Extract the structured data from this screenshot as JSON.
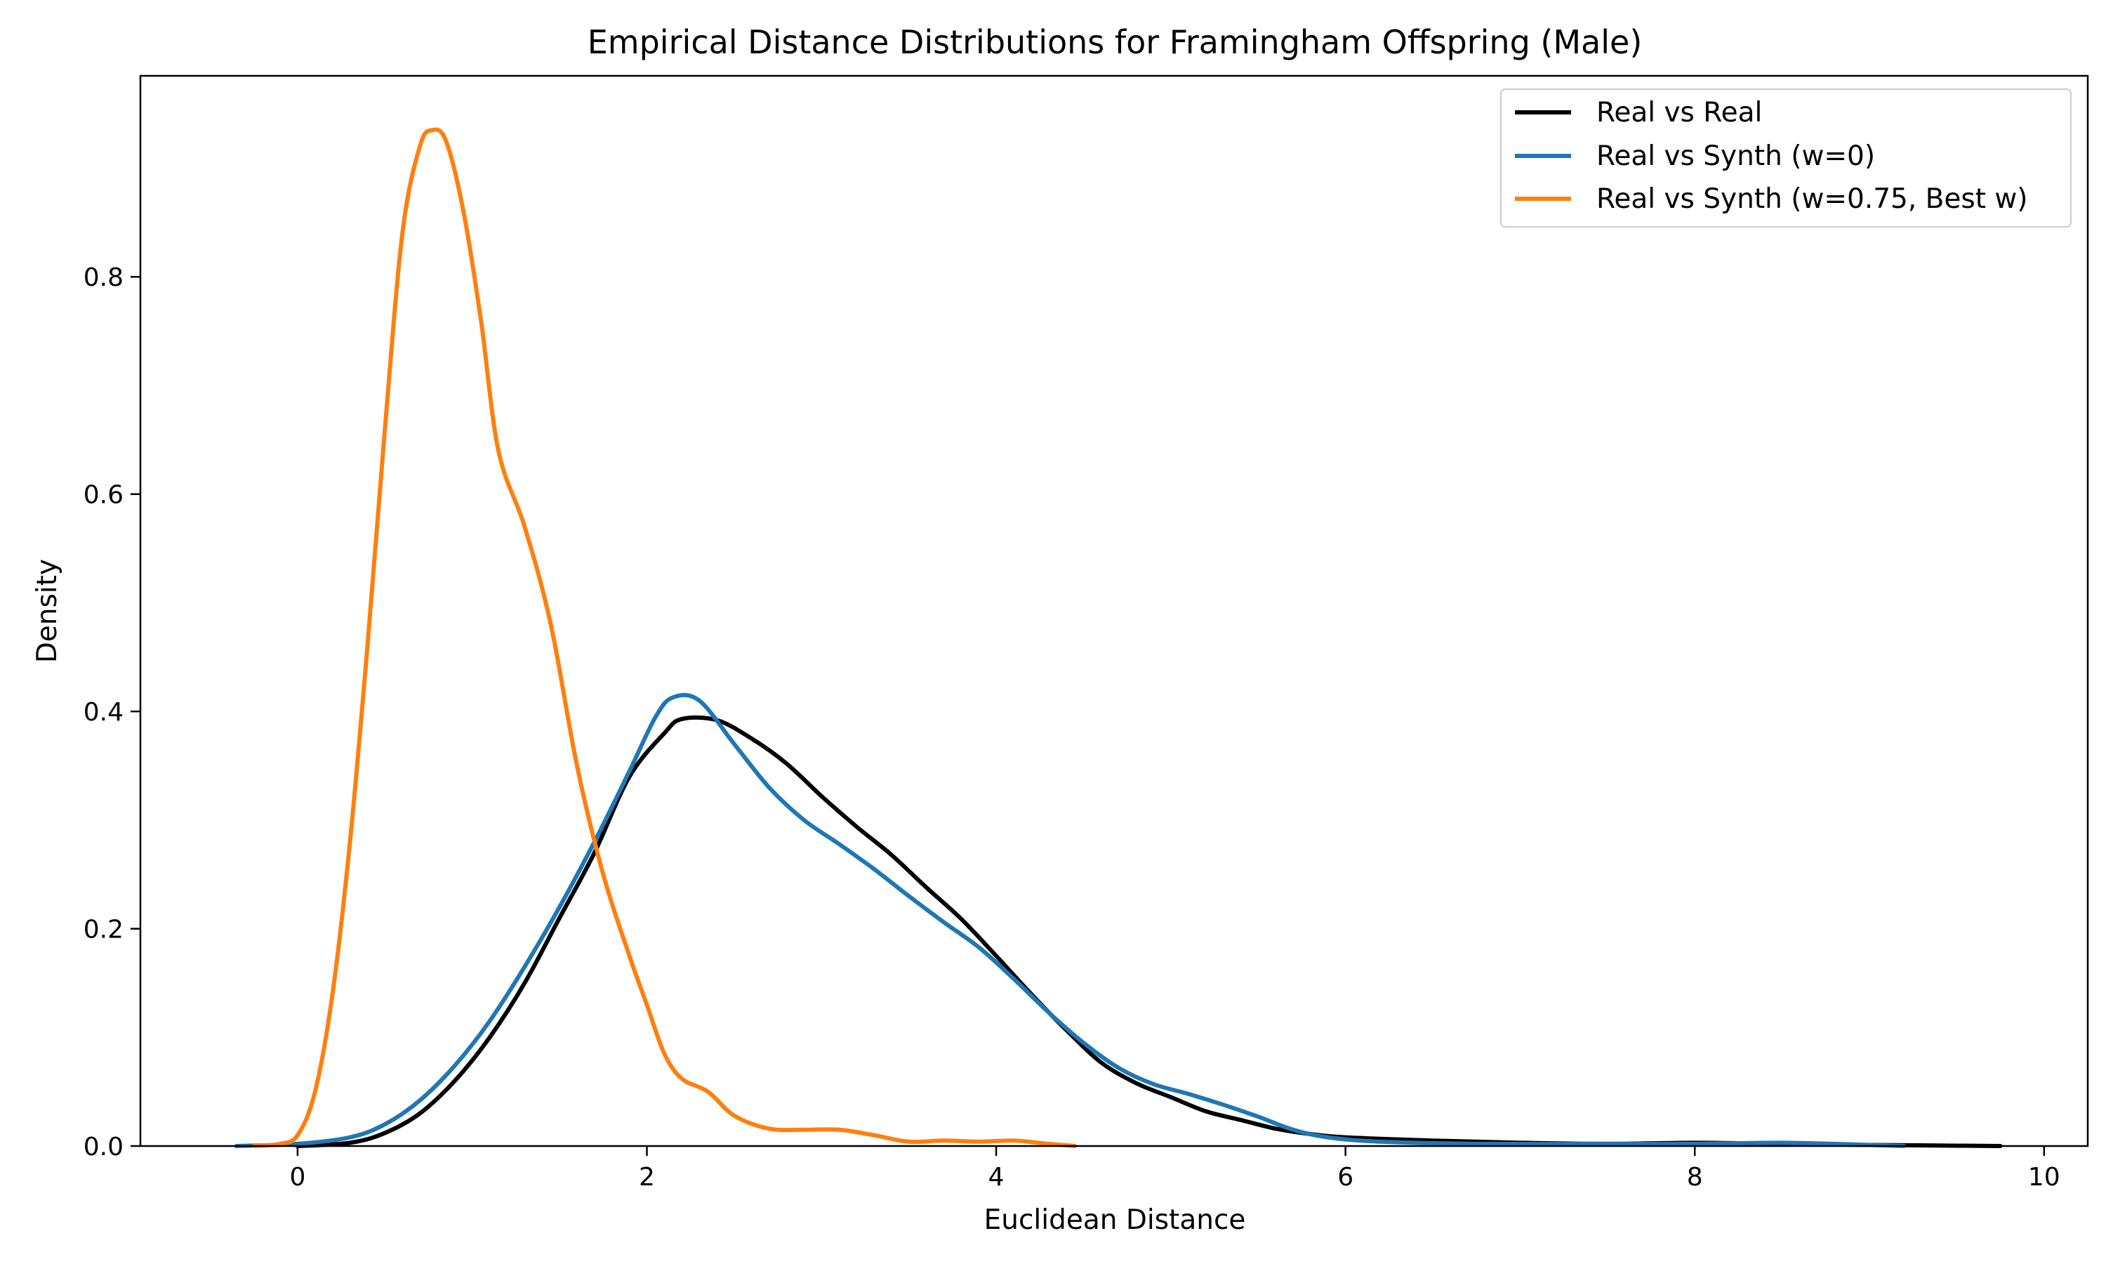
{
  "chart_data": {
    "type": "line",
    "title": "Empirical Distance Distributions for Framingham Offspring (Male)",
    "xlabel": "Euclidean Distance",
    "ylabel": "Density",
    "xlim": [
      -0.9,
      10.25
    ],
    "ylim": [
      0,
      0.985
    ],
    "xticks": [
      0,
      2,
      4,
      6,
      8,
      10
    ],
    "xtick_labels": [
      "0",
      "2",
      "4",
      "6",
      "8",
      "10"
    ],
    "yticks": [
      0,
      0.2,
      0.4,
      0.6,
      0.8
    ],
    "ytick_labels": [
      "0.0",
      "0.2",
      "0.4",
      "0.6",
      "0.8"
    ],
    "legend_position": "upper right",
    "series": [
      {
        "name": "Real vs Real",
        "legend_label": "Real vs Real",
        "color": "#000000",
        "points": [
          [
            0.0,
            0.0
          ],
          [
            0.3,
            0.003
          ],
          [
            0.5,
            0.012
          ],
          [
            0.7,
            0.03
          ],
          [
            0.9,
            0.06
          ],
          [
            1.1,
            0.1
          ],
          [
            1.3,
            0.15
          ],
          [
            1.5,
            0.21
          ],
          [
            1.7,
            0.27
          ],
          [
            1.9,
            0.34
          ],
          [
            2.1,
            0.38
          ],
          [
            2.2,
            0.393
          ],
          [
            2.4,
            0.392
          ],
          [
            2.6,
            0.375
          ],
          [
            2.8,
            0.352
          ],
          [
            3.0,
            0.322
          ],
          [
            3.2,
            0.294
          ],
          [
            3.4,
            0.268
          ],
          [
            3.6,
            0.238
          ],
          [
            3.8,
            0.209
          ],
          [
            4.0,
            0.175
          ],
          [
            4.2,
            0.14
          ],
          [
            4.4,
            0.107
          ],
          [
            4.6,
            0.077
          ],
          [
            4.8,
            0.058
          ],
          [
            5.0,
            0.045
          ],
          [
            5.2,
            0.032
          ],
          [
            5.4,
            0.024
          ],
          [
            5.6,
            0.016
          ],
          [
            5.8,
            0.011
          ],
          [
            6.0,
            0.008
          ],
          [
            6.5,
            0.005
          ],
          [
            7.0,
            0.003
          ],
          [
            7.5,
            0.002
          ],
          [
            8.0,
            0.003
          ],
          [
            8.5,
            0.002
          ],
          [
            9.0,
            0.001
          ],
          [
            9.75,
            0.0
          ]
        ]
      },
      {
        "name": "Real vs Synth (w=0)",
        "legend_label": "Real vs Synth (w=0)",
        "color": "#1f77b4",
        "points": [
          [
            -0.35,
            0.0
          ],
          [
            0.0,
            0.002
          ],
          [
            0.3,
            0.008
          ],
          [
            0.5,
            0.02
          ],
          [
            0.7,
            0.042
          ],
          [
            0.9,
            0.074
          ],
          [
            1.1,
            0.115
          ],
          [
            1.3,
            0.165
          ],
          [
            1.5,
            0.22
          ],
          [
            1.7,
            0.28
          ],
          [
            1.9,
            0.345
          ],
          [
            2.05,
            0.395
          ],
          [
            2.15,
            0.413
          ],
          [
            2.3,
            0.41
          ],
          [
            2.5,
            0.37
          ],
          [
            2.7,
            0.33
          ],
          [
            2.9,
            0.3
          ],
          [
            3.1,
            0.278
          ],
          [
            3.3,
            0.255
          ],
          [
            3.5,
            0.23
          ],
          [
            3.7,
            0.206
          ],
          [
            3.9,
            0.183
          ],
          [
            4.1,
            0.154
          ],
          [
            4.3,
            0.123
          ],
          [
            4.5,
            0.095
          ],
          [
            4.7,
            0.072
          ],
          [
            4.9,
            0.057
          ],
          [
            5.1,
            0.048
          ],
          [
            5.3,
            0.038
          ],
          [
            5.5,
            0.027
          ],
          [
            5.7,
            0.015
          ],
          [
            5.9,
            0.008
          ],
          [
            6.2,
            0.004
          ],
          [
            6.8,
            0.002
          ],
          [
            7.5,
            0.002
          ],
          [
            8.0,
            0.002
          ],
          [
            8.5,
            0.003
          ],
          [
            9.0,
            0.001
          ],
          [
            9.2,
            0.0
          ]
        ]
      },
      {
        "name": "Real vs Synth (w=0.75, Best w)",
        "legend_label": "Real vs Synth (w=0.75, Best w)",
        "color": "#ff7f0e",
        "points": [
          [
            -0.25,
            0.0
          ],
          [
            -0.1,
            0.002
          ],
          [
            0.0,
            0.01
          ],
          [
            0.1,
            0.05
          ],
          [
            0.2,
            0.14
          ],
          [
            0.3,
            0.28
          ],
          [
            0.4,
            0.46
          ],
          [
            0.5,
            0.66
          ],
          [
            0.6,
            0.84
          ],
          [
            0.7,
            0.92
          ],
          [
            0.77,
            0.935
          ],
          [
            0.85,
            0.925
          ],
          [
            0.95,
            0.86
          ],
          [
            1.05,
            0.76
          ],
          [
            1.15,
            0.64
          ],
          [
            1.3,
            0.57
          ],
          [
            1.45,
            0.48
          ],
          [
            1.6,
            0.35
          ],
          [
            1.75,
            0.25
          ],
          [
            1.9,
            0.175
          ],
          [
            2.0,
            0.13
          ],
          [
            2.1,
            0.085
          ],
          [
            2.2,
            0.062
          ],
          [
            2.35,
            0.05
          ],
          [
            2.5,
            0.028
          ],
          [
            2.7,
            0.016
          ],
          [
            2.9,
            0.015
          ],
          [
            3.1,
            0.015
          ],
          [
            3.3,
            0.01
          ],
          [
            3.5,
            0.004
          ],
          [
            3.7,
            0.005
          ],
          [
            3.9,
            0.004
          ],
          [
            4.1,
            0.005
          ],
          [
            4.3,
            0.002
          ],
          [
            4.45,
            0.0
          ]
        ]
      }
    ]
  }
}
